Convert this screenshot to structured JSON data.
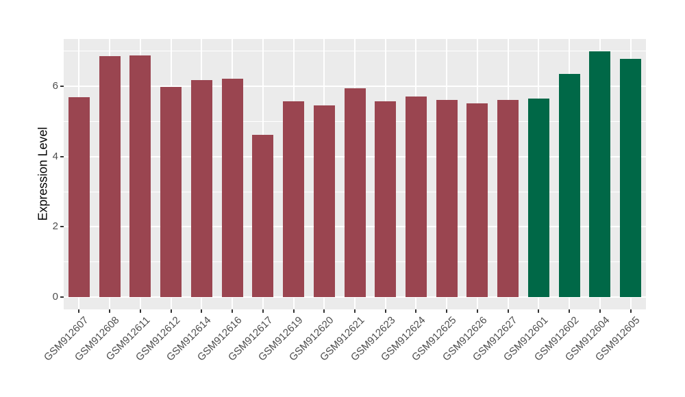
{
  "chart_data": {
    "type": "bar",
    "title": "",
    "xlabel": "",
    "ylabel": "Expression Level",
    "categories": [
      "GSM912607",
      "GSM912608",
      "GSM912611",
      "GSM912612",
      "GSM912614",
      "GSM912616",
      "GSM912617",
      "GSM912619",
      "GSM912620",
      "GSM912621",
      "GSM912623",
      "GSM912624",
      "GSM912625",
      "GSM912626",
      "GSM912627",
      "GSM912601",
      "GSM912602",
      "GSM912604",
      "GSM912605"
    ],
    "values": [
      5.69,
      6.86,
      6.89,
      5.98,
      6.18,
      6.22,
      4.63,
      5.57,
      5.45,
      5.94,
      5.57,
      5.71,
      5.61,
      5.52,
      5.61,
      5.65,
      6.35,
      7.0,
      6.78
    ],
    "colors": [
      "#9A4550",
      "#9A4550",
      "#9A4550",
      "#9A4550",
      "#9A4550",
      "#9A4550",
      "#9A4550",
      "#9A4550",
      "#9A4550",
      "#9A4550",
      "#9A4550",
      "#9A4550",
      "#9A4550",
      "#9A4550",
      "#9A4550",
      "#006847",
      "#006847",
      "#006847",
      "#006847"
    ],
    "group_colors": {
      "maroon": "#9A4550",
      "green": "#006847"
    },
    "yticks": [
      0,
      2,
      4,
      6
    ],
    "minor_gridlines": [
      1,
      3,
      5,
      7
    ],
    "ylim": [
      -0.35,
      7.35
    ],
    "bar_width_ratio": 0.7,
    "x_label_rotation_deg": 45,
    "panel_background": "#EBEBEB",
    "gridline_color": "#FFFFFF",
    "tick_color": "#333333",
    "axis_text_color": "#4d4d4d",
    "legend": "none",
    "grid": "on"
  }
}
